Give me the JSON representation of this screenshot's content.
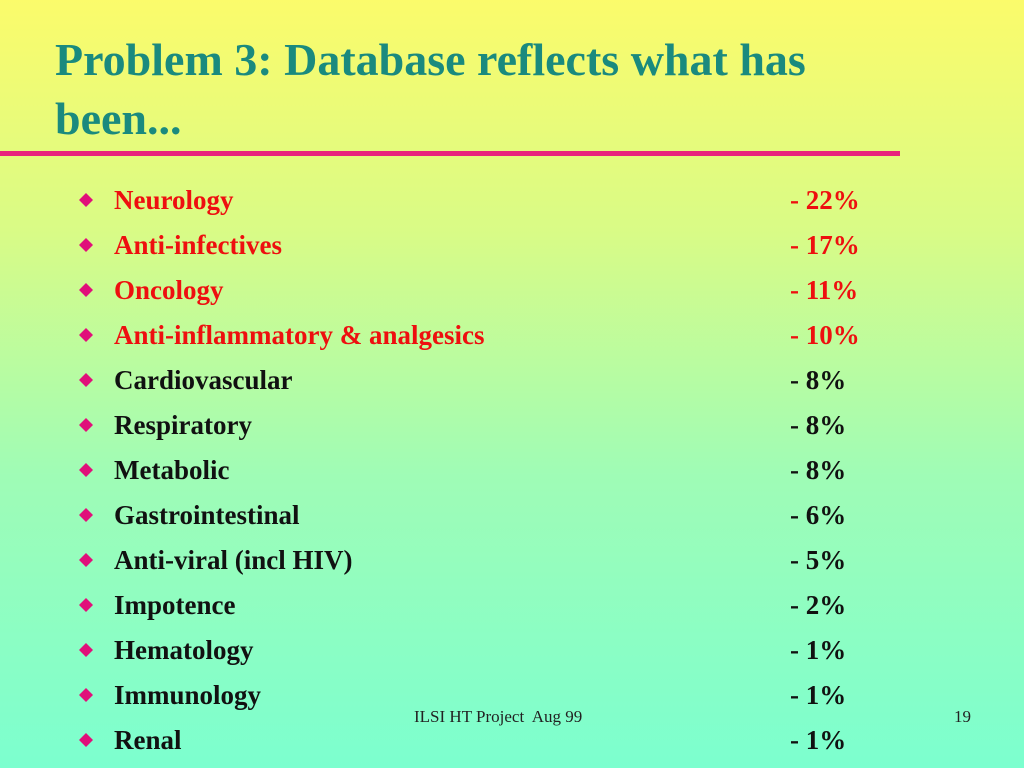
{
  "title": "Problem 3: Database reflects what has been...",
  "colors": {
    "title": "#1a8a7e",
    "rule": "#e8247c",
    "bullet": "#e0107a",
    "highlight_text": "#ee0f0f",
    "normal_text": "#111111"
  },
  "bullet_icon": "diamond-icon",
  "items": [
    {
      "label": "Neurology",
      "value": "- 22%",
      "highlight": true
    },
    {
      "label": "Anti-infectives",
      "value": "- 17%",
      "highlight": true
    },
    {
      "label": "Oncology",
      "value": "- 11%",
      "highlight": true
    },
    {
      "label": "Anti-inflammatory & analgesics",
      "value": "- 10%",
      "highlight": true
    },
    {
      "label": "Cardiovascular",
      "value": "- 8%",
      "highlight": false
    },
    {
      "label": "Respiratory",
      "value": "- 8%",
      "highlight": false
    },
    {
      "label": "Metabolic",
      "value": "- 8%",
      "highlight": false
    },
    {
      "label": "Gastrointestinal",
      "value": "- 6%",
      "highlight": false
    },
    {
      "label": "Anti-viral (incl HIV)",
      "value": "- 5%",
      "highlight": false
    },
    {
      "label": "Impotence",
      "value": "- 2%",
      "highlight": false
    },
    {
      "label": "Hematology",
      "value": "- 1%",
      "highlight": false
    },
    {
      "label": "Immunology",
      "value": "- 1%",
      "highlight": false
    },
    {
      "label": "Renal",
      "value": "- 1%",
      "highlight": false
    }
  ],
  "footer": {
    "text": "ILSI HT Project  Aug 99",
    "page": "19"
  }
}
